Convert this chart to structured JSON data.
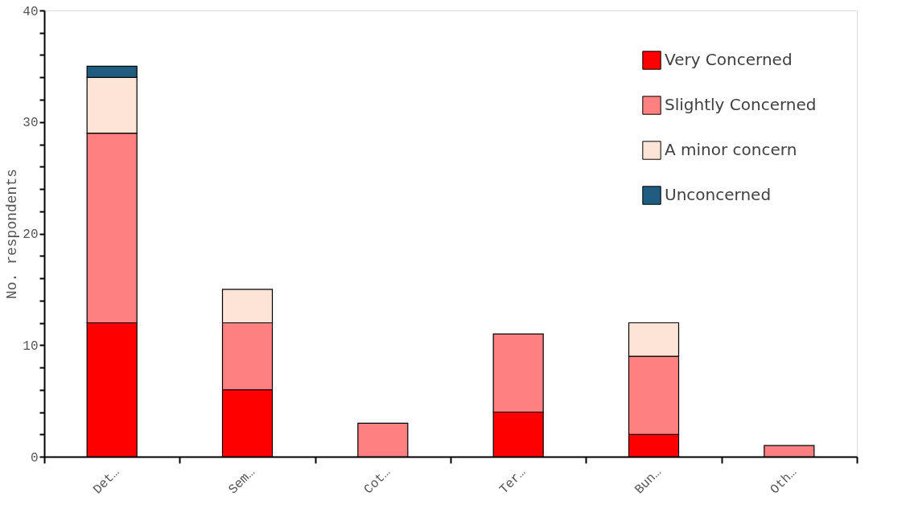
{
  "chart_data": {
    "type": "bar",
    "stacked": true,
    "ylabel": "No. respondents",
    "categories": [
      "Det…",
      "Sem…",
      "Cot…",
      "Ter…",
      "Bun…",
      "Oth…"
    ],
    "series": [
      {
        "name": "Very Concerned",
        "color": "#ff0000",
        "values": [
          12,
          6,
          0,
          4,
          2,
          0
        ]
      },
      {
        "name": "Slightly Concerned",
        "color": "#ff8080",
        "values": [
          17,
          6,
          3,
          7,
          7,
          1
        ]
      },
      {
        "name": "A minor concern",
        "color": "#fce4d6",
        "values": [
          5,
          3,
          0,
          0,
          3,
          0
        ]
      },
      {
        "name": "Unconcerned",
        "color": "#1f5c80",
        "values": [
          1,
          0,
          0,
          0,
          0,
          0
        ]
      }
    ],
    "ylim": [
      0,
      40
    ],
    "yticks": [
      0,
      {
        "value": 2,
        "label": null
      },
      {
        "value": 4,
        "label": null
      },
      {
        "value": 6,
        "label": null
      },
      {
        "value": 8,
        "label": null
      },
      10,
      {
        "value": 12,
        "label": null
      },
      {
        "value": 14,
        "label": null
      },
      {
        "value": 16,
        "label": null
      },
      {
        "value": 18,
        "label": null
      },
      20,
      {
        "value": 22,
        "label": null
      },
      {
        "value": 24,
        "label": null
      },
      {
        "value": 26,
        "label": null
      },
      {
        "value": 28,
        "label": null
      },
      30,
      {
        "value": 32,
        "label": null
      },
      {
        "value": 34,
        "label": null
      },
      {
        "value": 36,
        "label": null
      },
      {
        "value": 38,
        "label": null
      },
      40
    ],
    "grid": false,
    "legend": "top right"
  }
}
